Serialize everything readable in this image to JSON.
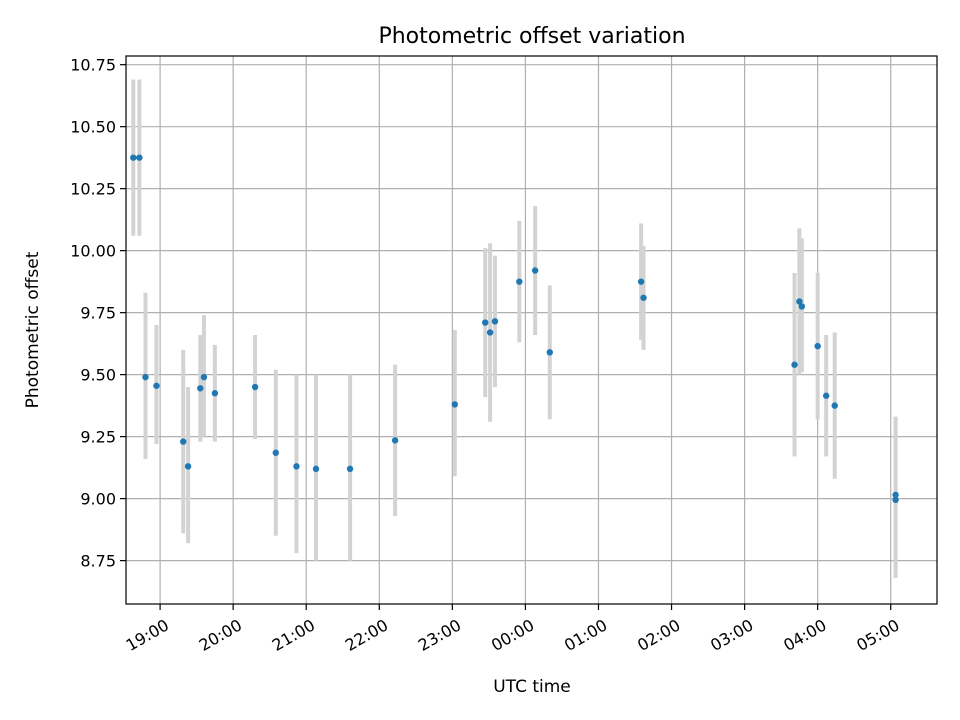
{
  "chart_data": {
    "type": "scatter",
    "title": "Photometric offset variation",
    "xlabel": "UTC time",
    "ylabel": "Photometric offset",
    "grid": true,
    "xlim": [
      "18:32",
      "05:38"
    ],
    "ylim": [
      8.575,
      10.785
    ],
    "x_ticks": [
      "19:00",
      "20:00",
      "21:00",
      "22:00",
      "23:00",
      "00:00",
      "01:00",
      "02:00",
      "03:00",
      "04:00",
      "05:00"
    ],
    "y_ticks": [
      8.75,
      9.0,
      9.25,
      9.5,
      9.75,
      10.0,
      10.25,
      10.5,
      10.75
    ],
    "y_tick_labels": [
      "8.75",
      "9.00",
      "9.25",
      "9.50",
      "9.75",
      "10.00",
      "10.25",
      "10.50",
      "10.75"
    ],
    "colors": {
      "point": "#1f77b4",
      "errorbar": "#d3d3d3",
      "grid": "#b0b0b0"
    },
    "points": [
      {
        "x": "18:38",
        "y": 10.375,
        "y_low": 10.06,
        "y_high": 10.69
      },
      {
        "x": "18:43",
        "y": 10.375,
        "y_low": 10.06,
        "y_high": 10.69
      },
      {
        "x": "18:48",
        "y": 9.49,
        "y_low": 9.16,
        "y_high": 9.83
      },
      {
        "x": "18:57",
        "y": 9.455,
        "y_low": 9.22,
        "y_high": 9.7
      },
      {
        "x": "19:19",
        "y": 9.23,
        "y_low": 8.86,
        "y_high": 9.6
      },
      {
        "x": "19:23",
        "y": 9.13,
        "y_low": 8.82,
        "y_high": 9.45
      },
      {
        "x": "19:33",
        "y": 9.445,
        "y_low": 9.23,
        "y_high": 9.66
      },
      {
        "x": "19:36",
        "y": 9.49,
        "y_low": 9.25,
        "y_high": 9.74
      },
      {
        "x": "19:45",
        "y": 9.425,
        "y_low": 9.23,
        "y_high": 9.62
      },
      {
        "x": "20:18",
        "y": 9.45,
        "y_low": 9.24,
        "y_high": 9.66
      },
      {
        "x": "20:35",
        "y": 9.185,
        "y_low": 8.85,
        "y_high": 9.52
      },
      {
        "x": "20:52",
        "y": 9.13,
        "y_low": 8.78,
        "y_high": 9.5
      },
      {
        "x": "21:08",
        "y": 9.12,
        "y_low": 8.75,
        "y_high": 9.5
      },
      {
        "x": "21:36",
        "y": 9.12,
        "y_low": 8.75,
        "y_high": 9.5
      },
      {
        "x": "22:13",
        "y": 9.235,
        "y_low": 8.93,
        "y_high": 9.54
      },
      {
        "x": "23:02",
        "y": 9.38,
        "y_low": 9.09,
        "y_high": 9.68
      },
      {
        "x": "23:27",
        "y": 9.71,
        "y_low": 9.41,
        "y_high": 10.01
      },
      {
        "x": "23:31",
        "y": 9.67,
        "y_low": 9.31,
        "y_high": 10.03
      },
      {
        "x": "23:35",
        "y": 9.715,
        "y_low": 9.45,
        "y_high": 9.98
      },
      {
        "x": "23:55",
        "y": 9.875,
        "y_low": 9.63,
        "y_high": 10.12
      },
      {
        "x": "00:08",
        "y": 9.92,
        "y_low": 9.66,
        "y_high": 10.18
      },
      {
        "x": "00:20",
        "y": 9.59,
        "y_low": 9.32,
        "y_high": 9.86
      },
      {
        "x": "01:35",
        "y": 9.875,
        "y_low": 9.64,
        "y_high": 10.11
      },
      {
        "x": "01:37",
        "y": 9.81,
        "y_low": 9.6,
        "y_high": 10.02
      },
      {
        "x": "03:41",
        "y": 9.54,
        "y_low": 9.17,
        "y_high": 9.91
      },
      {
        "x": "03:45",
        "y": 9.795,
        "y_low": 9.5,
        "y_high": 10.09
      },
      {
        "x": "03:47",
        "y": 9.775,
        "y_low": 9.51,
        "y_high": 10.05
      },
      {
        "x": "04:00",
        "y": 9.615,
        "y_low": 9.32,
        "y_high": 9.91
      },
      {
        "x": "04:07",
        "y": 9.415,
        "y_low": 9.17,
        "y_high": 9.66
      },
      {
        "x": "04:14",
        "y": 9.375,
        "y_low": 9.08,
        "y_high": 9.67
      },
      {
        "x": "05:04",
        "y": 8.995,
        "y_low": 8.68,
        "y_high": 9.33
      },
      {
        "x": "05:04",
        "y": 9.015,
        "y_low": 8.7,
        "y_high": 9.33
      }
    ]
  }
}
